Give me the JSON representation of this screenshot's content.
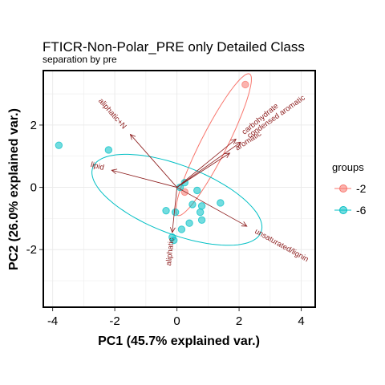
{
  "chart_data": {
    "type": "scatter",
    "title": "FTICR-Non-Polar_PRE only Detailed Class",
    "subtitle": "separation by pre",
    "xlabel": "PC1 (45.7% explained var.)",
    "ylabel": "PC2 (26.0% explained var.)",
    "xlim": [
      -4.3,
      4.45
    ],
    "ylim": [
      -3.85,
      3.75
    ],
    "xticks": [
      -4,
      -2,
      0,
      2,
      4
    ],
    "yticks": [
      -2,
      0,
      2
    ],
    "grid": true,
    "legend": {
      "title": "groups",
      "position": "right",
      "entries": [
        {
          "label": "-2",
          "color": "#F8766D"
        },
        {
          "label": "-6",
          "color": "#00BFC4"
        }
      ]
    },
    "series": [
      {
        "name": "-2",
        "color": "#F8766D",
        "points": [
          [
            2.2,
            3.3
          ],
          [
            0.25,
            -0.15
          ]
        ],
        "ellipse": {
          "cx": 1.18,
          "cy": 1.37,
          "rx": 2.55,
          "ry": 0.42,
          "angle_deg": 63
        }
      },
      {
        "name": "-6",
        "color": "#00BFC4",
        "points": [
          [
            -3.8,
            1.35
          ],
          [
            -2.2,
            1.2
          ],
          [
            0.1,
            0.0
          ],
          [
            0.25,
            0.15
          ],
          [
            0.65,
            -0.1
          ],
          [
            -0.35,
            -0.75
          ],
          [
            -0.05,
            -0.8
          ],
          [
            0.5,
            -0.55
          ],
          [
            0.8,
            -0.6
          ],
          [
            1.4,
            -0.5
          ],
          [
            0.75,
            -0.8
          ],
          [
            0.8,
            -1.05
          ],
          [
            0.4,
            -1.15
          ],
          [
            0.15,
            -1.35
          ],
          [
            -0.15,
            -1.6
          ],
          [
            -0.1,
            -1.7
          ]
        ],
        "ellipse": {
          "cx": 0.0,
          "cy": -0.4,
          "rx": 2.9,
          "ry": 1.1,
          "angle_deg": -21
        }
      }
    ],
    "loadings": [
      {
        "label": "aliphatic+N",
        "x": -1.5,
        "y": 1.7
      },
      {
        "label": "lipid",
        "x": -2.1,
        "y": 0.55
      },
      {
        "label": "carbohydrate",
        "x": 1.9,
        "y": 1.55
      },
      {
        "label": "condensed aromatic",
        "x": 2.05,
        "y": 1.45
      },
      {
        "label": "aromatic",
        "x": 1.7,
        "y": 1.1
      },
      {
        "label": "aliphatic",
        "x": -0.15,
        "y": -1.45
      },
      {
        "label": "unsaturated/lignin",
        "x": 2.25,
        "y": -1.25
      }
    ]
  }
}
